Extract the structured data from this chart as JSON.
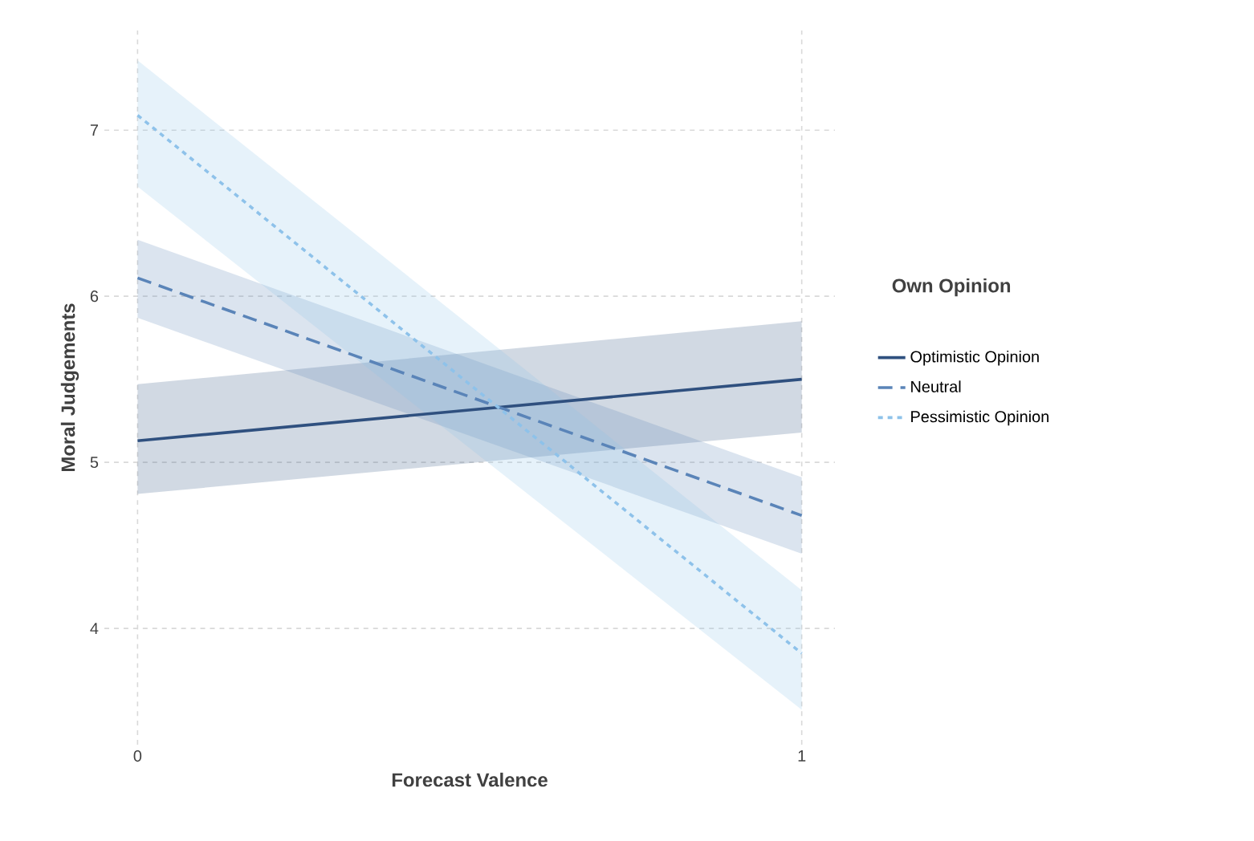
{
  "chart_data": {
    "type": "line",
    "xlabel": "Forecast Valence",
    "ylabel": "Moral Judgements",
    "legend_title": "Own Opinion",
    "x": [
      0,
      1
    ],
    "series": [
      {
        "name": "Optimistic Opinion",
        "color": "#2f507f",
        "values": [
          5.13,
          5.5
        ],
        "lower": [
          4.81,
          5.18
        ],
        "upper": [
          5.47,
          5.85
        ],
        "line_style": "solid"
      },
      {
        "name": "Neutral",
        "color": "#5a84b8",
        "values": [
          6.11,
          4.68
        ],
        "lower": [
          5.87,
          4.45
        ],
        "upper": [
          6.34,
          4.91
        ],
        "line_style": "dashed"
      },
      {
        "name": "Pessimistic Opinion",
        "color": "#8ec2ea",
        "values": [
          7.09,
          3.85
        ],
        "lower": [
          6.66,
          3.51
        ],
        "upper": [
          7.42,
          4.23
        ],
        "line_style": "dotted"
      }
    ],
    "xlim": [
      -0.05,
      1.05
    ],
    "ylim": [
      3.3,
      7.6
    ],
    "xticks": [
      0,
      1
    ],
    "yticks": [
      4,
      5,
      6,
      7
    ],
    "grid": true,
    "legend": "right",
    "marker": "none"
  }
}
